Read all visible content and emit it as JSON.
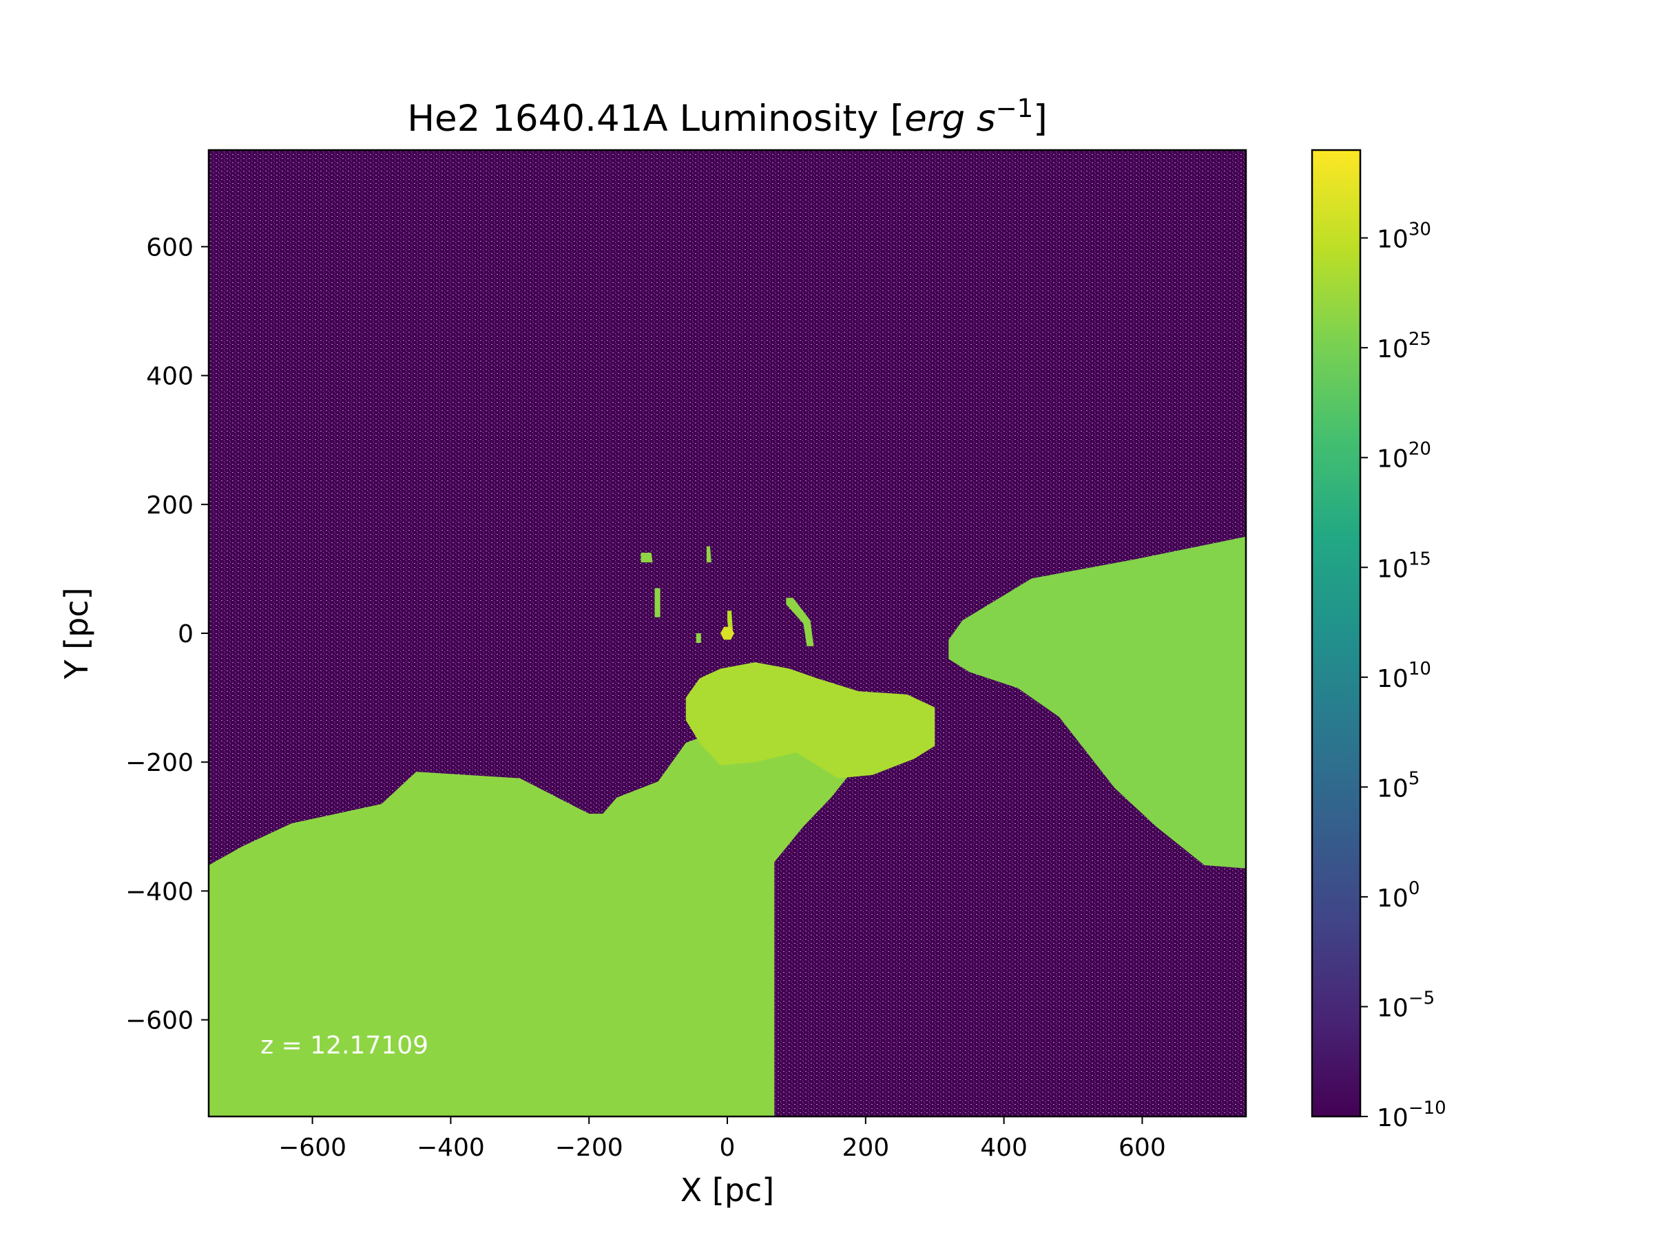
{
  "chart_data": {
    "type": "heatmap",
    "title": "He2 1640.41A Luminosity [erg s^-1]",
    "title_parts": {
      "main": "He2 1640.41A Luminosity [",
      "unit": "erg s",
      "exp": "−1",
      "close": "]"
    },
    "xlabel": "X [pc]",
    "ylabel": "Y [pc]",
    "xlim": [
      -750,
      750
    ],
    "ylim": [
      -750,
      750
    ],
    "xticks": [
      -600,
      -400,
      -200,
      0,
      200,
      400,
      600
    ],
    "yticks": [
      -600,
      -400,
      -200,
      0,
      200,
      400,
      600
    ],
    "xtick_labels": [
      "−600",
      "−400",
      "−200",
      "0",
      "200",
      "400",
      "600"
    ],
    "ytick_labels": [
      "−600",
      "−400",
      "−200",
      "0",
      "200",
      "400",
      "600"
    ],
    "colorbar": {
      "scale": "log",
      "colormap": "viridis",
      "range_log10": [
        -10,
        34
      ],
      "ticks_log10": [
        -10,
        -5,
        0,
        5,
        10,
        15,
        20,
        25,
        30
      ],
      "tick_labels": [
        {
          "base": "10",
          "exp": "−10"
        },
        {
          "base": "10",
          "exp": "−5"
        },
        {
          "base": "10",
          "exp": "0"
        },
        {
          "base": "10",
          "exp": "5"
        },
        {
          "base": "10",
          "exp": "10"
        },
        {
          "base": "10",
          "exp": "15"
        },
        {
          "base": "10",
          "exp": "20"
        },
        {
          "base": "10",
          "exp": "25"
        },
        {
          "base": "10",
          "exp": "30"
        }
      ]
    },
    "background_log10": -10,
    "regions": [
      {
        "name": "lower-left-emission",
        "log10_value": 26.5,
        "outline": [
          [
            -750,
            -750
          ],
          [
            68,
            -750
          ],
          [
            68,
            -355
          ],
          [
            110,
            -300
          ],
          [
            150,
            -255
          ],
          [
            180,
            -215
          ],
          [
            195,
            -190
          ],
          [
            120,
            -175
          ],
          [
            60,
            -160
          ],
          [
            -10,
            -150
          ],
          [
            -60,
            -170
          ],
          [
            -100,
            -230
          ],
          [
            -160,
            -255
          ],
          [
            -180,
            -280
          ],
          [
            -200,
            -280
          ],
          [
            -240,
            -258
          ],
          [
            -300,
            -225
          ],
          [
            -450,
            -215
          ],
          [
            -500,
            -265
          ],
          [
            -630,
            -295
          ],
          [
            -700,
            -330
          ],
          [
            -750,
            -360
          ]
        ]
      },
      {
        "name": "central-blob",
        "log10_value": 28.5,
        "outline": [
          [
            -60,
            -100
          ],
          [
            -40,
            -70
          ],
          [
            -10,
            -55
          ],
          [
            40,
            -45
          ],
          [
            90,
            -55
          ],
          [
            130,
            -70
          ],
          [
            190,
            -90
          ],
          [
            260,
            -95
          ],
          [
            300,
            -115
          ],
          [
            300,
            -175
          ],
          [
            270,
            -195
          ],
          [
            210,
            -220
          ],
          [
            160,
            -225
          ],
          [
            100,
            -185
          ],
          [
            40,
            -200
          ],
          [
            -10,
            -205
          ],
          [
            -40,
            -170
          ],
          [
            -60,
            -135
          ]
        ]
      },
      {
        "name": "right-wedge",
        "log10_value": 25.8,
        "outline": [
          [
            320,
            -10
          ],
          [
            340,
            20
          ],
          [
            440,
            85
          ],
          [
            590,
            115
          ],
          [
            750,
            150
          ],
          [
            750,
            -365
          ],
          [
            690,
            -360
          ],
          [
            620,
            -300
          ],
          [
            560,
            -240
          ],
          [
            480,
            -130
          ],
          [
            420,
            -85
          ],
          [
            350,
            -60
          ],
          [
            320,
            -40
          ]
        ]
      },
      {
        "name": "knot-upper-left",
        "log10_value": 26.5,
        "outline": [
          [
            -125,
            125
          ],
          [
            -110,
            125
          ],
          [
            -108,
            110
          ],
          [
            -125,
            110
          ]
        ]
      },
      {
        "name": "knot-upper-mid",
        "log10_value": 26.5,
        "outline": [
          [
            -30,
            135
          ],
          [
            -25,
            135
          ],
          [
            -23,
            110
          ],
          [
            -30,
            110
          ]
        ]
      },
      {
        "name": "knot-left-bar",
        "log10_value": 26.5,
        "outline": [
          [
            -105,
            70
          ],
          [
            -97,
            70
          ],
          [
            -97,
            25
          ],
          [
            -105,
            25
          ]
        ]
      },
      {
        "name": "knot-right-arc",
        "log10_value": 26.5,
        "outline": [
          [
            85,
            55
          ],
          [
            95,
            55
          ],
          [
            120,
            20
          ],
          [
            125,
            -20
          ],
          [
            115,
            -20
          ],
          [
            110,
            15
          ],
          [
            85,
            45
          ]
        ]
      },
      {
        "name": "knot-small-left",
        "log10_value": 26.5,
        "outline": [
          [
            -45,
            0
          ],
          [
            -38,
            0
          ],
          [
            -38,
            -15
          ],
          [
            -45,
            -15
          ]
        ]
      },
      {
        "name": "knot-center-streak",
        "log10_value": 29.5,
        "outline": [
          [
            0,
            35
          ],
          [
            6,
            35
          ],
          [
            8,
            5
          ],
          [
            2,
            0
          ],
          [
            0,
            20
          ]
        ]
      },
      {
        "name": "knot-center",
        "log10_value": 31.5,
        "outline": [
          [
            -5,
            10
          ],
          [
            5,
            10
          ],
          [
            10,
            0
          ],
          [
            5,
            -10
          ],
          [
            -5,
            -10
          ],
          [
            -10,
            0
          ]
        ]
      }
    ],
    "annotation": "z = 12.17109",
    "annotation_pos": [
      -675,
      -652
    ]
  }
}
